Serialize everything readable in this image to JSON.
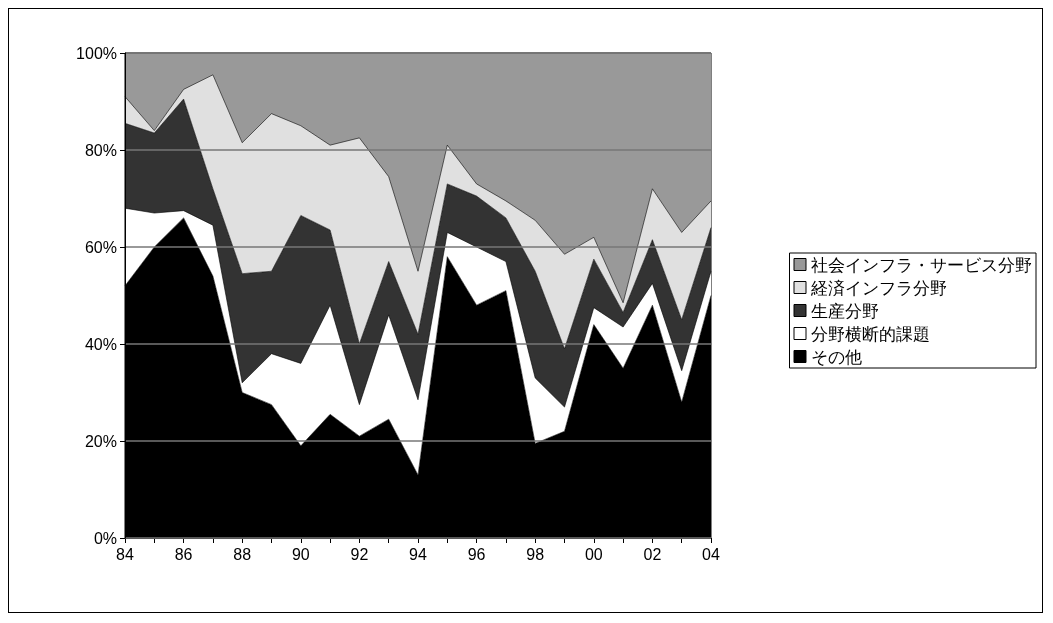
{
  "chart_data": {
    "type": "area",
    "stacked": true,
    "categories": [
      "84",
      null,
      "86",
      null,
      "88",
      null,
      "90",
      null,
      "92",
      null,
      "94",
      null,
      "96",
      null,
      "98",
      null,
      "00",
      null,
      "02",
      null,
      "04"
    ],
    "series": [
      {
        "name": "その他",
        "color": "#000000",
        "values": [
          52,
          60,
          66,
          54,
          30,
          27.5,
          19,
          25.5,
          21,
          24.5,
          13,
          58,
          48,
          51,
          19.5,
          22,
          44,
          35,
          48,
          28,
          50
        ]
      },
      {
        "name": "分野横断的課題",
        "color": "#ffffff",
        "values": [
          16,
          7,
          1.5,
          10.5,
          2,
          10.5,
          17,
          22.5,
          6.5,
          21.5,
          15.5,
          5,
          12,
          6,
          13.5,
          5,
          3.5,
          8.5,
          4.5,
          6.5,
          5
        ]
      },
      {
        "name": "生産分野",
        "color": "#333333",
        "values": [
          17.5,
          16.5,
          23,
          7.5,
          22.5,
          17,
          30.5,
          15.5,
          12.5,
          11,
          13.5,
          10,
          10.5,
          9,
          22,
          12,
          10,
          3,
          9,
          10.5,
          9
        ]
      },
      {
        "name": "経済インフラ分野",
        "color": "#e0e0e0",
        "values": [
          5.5,
          0.5,
          2,
          23.5,
          27,
          32.5,
          18.5,
          17.5,
          42.5,
          17.5,
          13,
          8,
          2.5,
          3.5,
          10.5,
          19.5,
          4.5,
          2,
          10.5,
          18,
          5.5
        ]
      },
      {
        "name": "社会インフラ・サービス分野",
        "color": "#999999",
        "values": [
          9,
          16,
          7.5,
          4.5,
          18.5,
          12.5,
          15,
          19,
          17.5,
          25.5,
          45,
          19,
          27,
          30.5,
          34.5,
          41.5,
          38,
          51.5,
          28,
          37,
          30.5
        ]
      }
    ],
    "ylim": [
      0,
      100
    ],
    "yticks": [
      {
        "value": 0,
        "label": "0%"
      },
      {
        "value": 20,
        "label": "20%"
      },
      {
        "value": 40,
        "label": "40%"
      },
      {
        "value": 60,
        "label": "60%"
      },
      {
        "value": 80,
        "label": "80%"
      },
      {
        "value": 100,
        "label": "100%"
      }
    ],
    "grid": "y",
    "legend": "right",
    "line_style": "solid",
    "marker": "none"
  }
}
